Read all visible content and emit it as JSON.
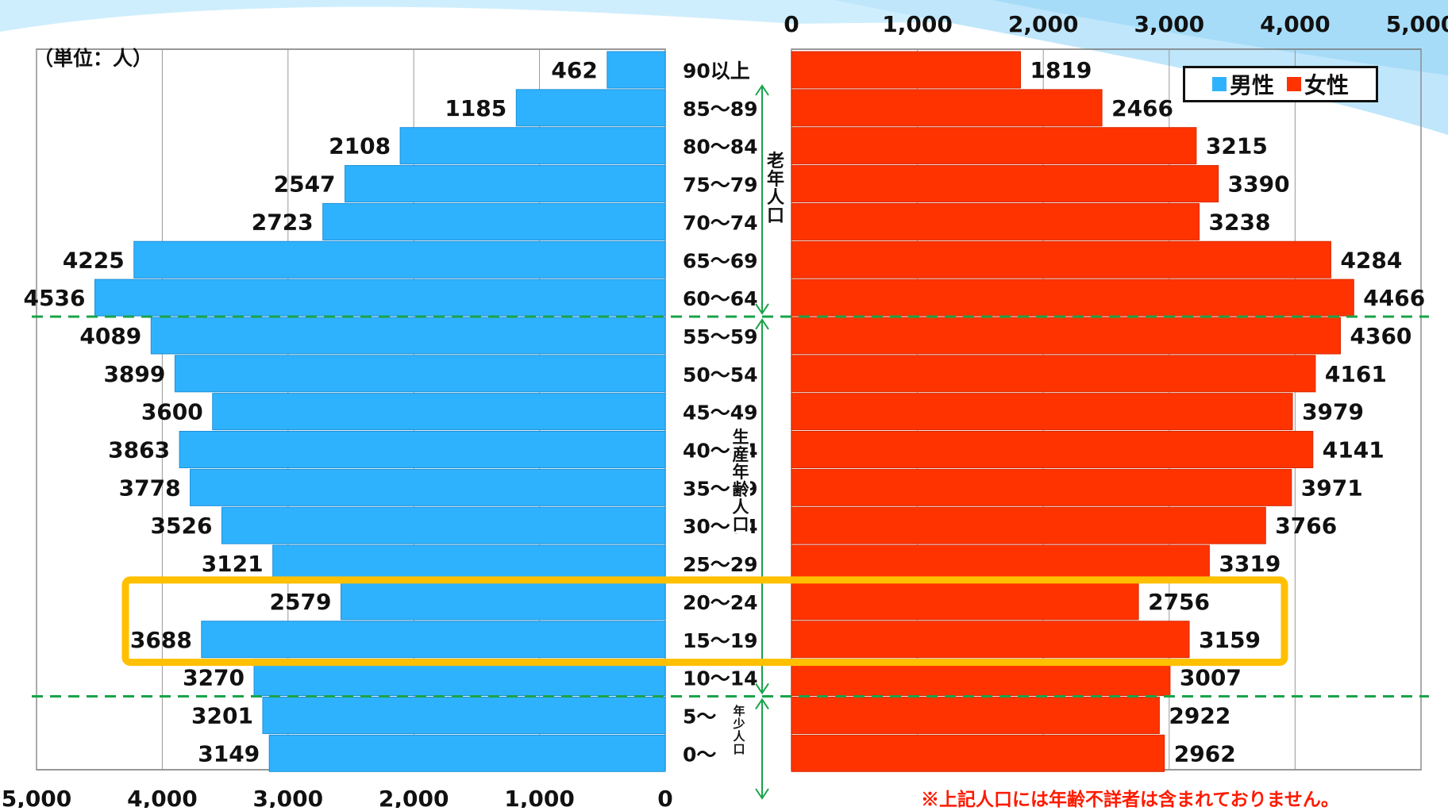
{
  "unit_label": "（単位：人）",
  "legend": {
    "male": "男性",
    "female": "女性"
  },
  "annotations": {
    "elderly": "老年人口",
    "working": "生産年齢人口",
    "youth": "年少人口"
  },
  "footnote": "※上記人口には年齢不詳者は含まれておりません。",
  "colors": {
    "male": "#2fb2fe",
    "female": "#ff3300",
    "highlight": "#ffc000",
    "divider": "#1aa34a",
    "bracket": "#1aa34a"
  },
  "chart_data": {
    "type": "bar",
    "orientation": "horizontal-population-pyramid",
    "categories": [
      "90以上",
      "85～89",
      "80～84",
      "75～79",
      "70～74",
      "65～69",
      "60～64",
      "55～59",
      "50～54",
      "45～49",
      "40～44",
      "35～39",
      "30～34",
      "25～29",
      "20～24",
      "15～19",
      "10～14",
      "5～",
      "0～"
    ],
    "series": [
      {
        "name": "男性",
        "values": [
          462,
          1185,
          2108,
          2547,
          2723,
          4225,
          4536,
          4089,
          3899,
          3600,
          3863,
          3778,
          3526,
          3121,
          2579,
          3688,
          3270,
          3201,
          3149
        ]
      },
      {
        "name": "女性",
        "values": [
          1819,
          2466,
          3215,
          3390,
          3238,
          4284,
          4466,
          4360,
          4161,
          3979,
          4141,
          3971,
          3766,
          3319,
          2756,
          3159,
          3007,
          2922,
          2962
        ]
      }
    ],
    "male_axis": {
      "ticks": [
        "5,000",
        "4,000",
        "3,000",
        "2,000",
        "1,000",
        "0"
      ],
      "range": [
        0,
        5000
      ]
    },
    "female_axis": {
      "ticks": [
        "0",
        "1,000",
        "2,000",
        "3,000",
        "4,000",
        "5,000"
      ],
      "range": [
        0,
        5000
      ]
    },
    "grid": true,
    "highlighted_categories": [
      "20～24",
      "15～19"
    ],
    "legend_position": "top-right"
  }
}
